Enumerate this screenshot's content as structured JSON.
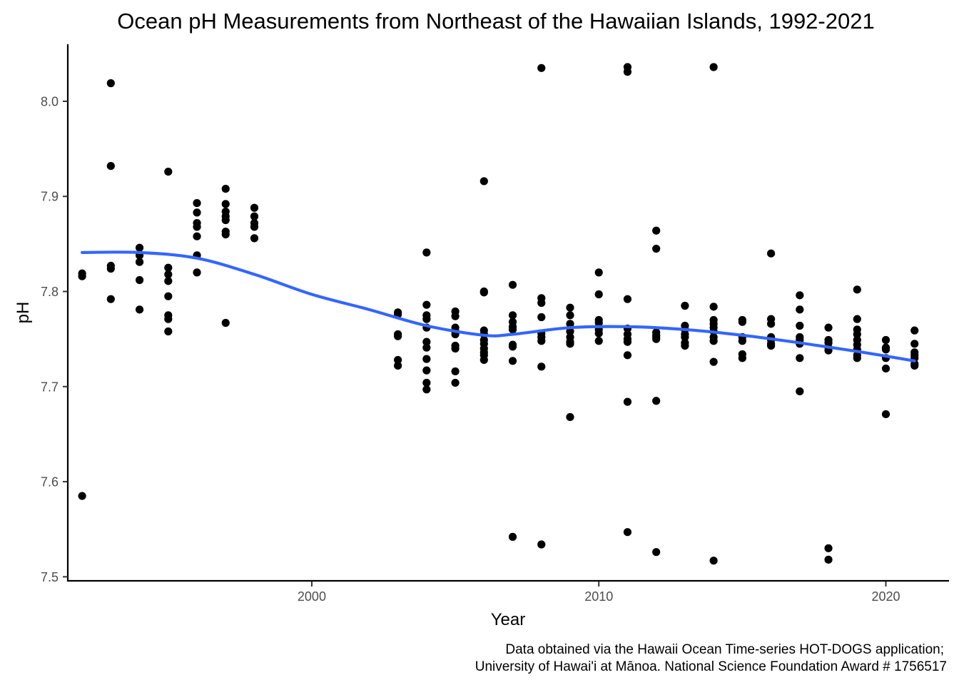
{
  "chart_data": {
    "type": "scatter",
    "title": "Ocean pH Measurements from Northeast of the Hawaiian Islands, 1992-2021",
    "xlabel": "Year",
    "ylabel": "pH",
    "xlim": [
      1991.5,
      2022.2
    ],
    "ylim": [
      7.495,
      8.06
    ],
    "x_ticks": [
      2000,
      2010,
      2020
    ],
    "y_ticks": [
      7.5,
      7.6,
      7.7,
      7.8,
      7.9,
      8.0
    ],
    "x_tick_labels": [
      "2000",
      "2010",
      "2020"
    ],
    "y_tick_labels": [
      "7.5",
      "7.6",
      "7.7",
      "7.8",
      "7.9",
      "8.0"
    ],
    "grid": false,
    "legend": "none",
    "point_color": "#000000",
    "smooth_color": "#3366FF",
    "caption_lines": [
      "Data obtained via the Hawaii Ocean Time-series HOT-DOGS application;",
      "University of Hawai'i at Mānoa. National Science Foundation Award # 1756517"
    ],
    "points": [
      {
        "year": 1992,
        "pH": [
          7.819,
          7.816,
          7.585
        ]
      },
      {
        "year": 1993,
        "pH": [
          8.019,
          7.932,
          7.827,
          7.824,
          7.792
        ]
      },
      {
        "year": 1994,
        "pH": [
          7.846,
          7.838,
          7.831,
          7.812,
          7.781
        ]
      },
      {
        "year": 1995,
        "pH": [
          7.926,
          7.825,
          7.818,
          7.811,
          7.795,
          7.775,
          7.771,
          7.758
        ]
      },
      {
        "year": 1996,
        "pH": [
          7.893,
          7.883,
          7.872,
          7.868,
          7.858,
          7.838,
          7.82
        ]
      },
      {
        "year": 1997,
        "pH": [
          7.908,
          7.892,
          7.884,
          7.879,
          7.875,
          7.863,
          7.86,
          7.767
        ]
      },
      {
        "year": 1998,
        "pH": [
          7.888,
          7.879,
          7.872,
          7.868,
          7.856
        ]
      },
      {
        "year": 2003,
        "pH": [
          7.778,
          7.776,
          7.755,
          7.753,
          7.728,
          7.722
        ]
      },
      {
        "year": 2004,
        "pH": [
          7.841,
          7.786,
          7.775,
          7.771,
          7.762,
          7.747,
          7.741,
          7.729,
          7.717,
          7.704,
          7.697
        ]
      },
      {
        "year": 2005,
        "pH": [
          7.779,
          7.774,
          7.762,
          7.758,
          7.755,
          7.743,
          7.74,
          7.716,
          7.704
        ]
      },
      {
        "year": 2006,
        "pH": [
          7.916,
          7.8,
          7.799,
          7.759,
          7.755,
          7.749,
          7.745,
          7.74,
          7.736,
          7.733,
          7.728
        ]
      },
      {
        "year": 2007,
        "pH": [
          7.807,
          7.775,
          7.768,
          7.763,
          7.76,
          7.744,
          7.742,
          7.727,
          7.542
        ]
      },
      {
        "year": 2008,
        "pH": [
          8.035,
          7.793,
          7.788,
          7.773,
          7.756,
          7.752,
          7.748,
          7.721,
          7.534
        ]
      },
      {
        "year": 2009,
        "pH": [
          7.783,
          7.775,
          7.766,
          7.758,
          7.752,
          7.747,
          7.745,
          7.668
        ]
      },
      {
        "year": 2010,
        "pH": [
          7.82,
          7.797,
          7.77,
          7.767,
          7.76,
          7.756,
          7.748
        ]
      },
      {
        "year": 2011,
        "pH": [
          8.036,
          8.031,
          7.792,
          7.761,
          7.755,
          7.75,
          7.747,
          7.733,
          7.684,
          7.547
        ]
      },
      {
        "year": 2012,
        "pH": [
          7.864,
          7.845,
          7.757,
          7.754,
          7.752,
          7.75,
          7.685,
          7.526
        ]
      },
      {
        "year": 2013,
        "pH": [
          7.785,
          7.764,
          7.76,
          7.755,
          7.752,
          7.746,
          7.743
        ]
      },
      {
        "year": 2014,
        "pH": [
          8.036,
          7.784,
          7.77,
          7.766,
          7.762,
          7.758,
          7.752,
          7.748,
          7.726,
          7.517
        ]
      },
      {
        "year": 2015,
        "pH": [
          7.77,
          7.768,
          7.752,
          7.748,
          7.734,
          7.73
        ]
      },
      {
        "year": 2016,
        "pH": [
          7.84,
          7.771,
          7.766,
          7.752,
          7.749,
          7.745,
          7.743
        ]
      },
      {
        "year": 2017,
        "pH": [
          7.796,
          7.781,
          7.764,
          7.752,
          7.749,
          7.745,
          7.73,
          7.695
        ]
      },
      {
        "year": 2018,
        "pH": [
          7.762,
          7.749,
          7.746,
          7.741,
          7.738,
          7.53,
          7.518
        ]
      },
      {
        "year": 2019,
        "pH": [
          7.802,
          7.771,
          7.76,
          7.755,
          7.749,
          7.744,
          7.739,
          7.733,
          7.73
        ]
      },
      {
        "year": 2020,
        "pH": [
          7.749,
          7.741,
          7.739,
          7.73,
          7.719,
          7.671
        ]
      },
      {
        "year": 2021,
        "pH": [
          7.759,
          7.745,
          7.736,
          7.733,
          7.73,
          7.724,
          7.722
        ]
      }
    ],
    "smooth_line": [
      {
        "year": 1992,
        "pH": 7.841
      },
      {
        "year": 1994,
        "pH": 7.841
      },
      {
        "year": 1996,
        "pH": 7.835
      },
      {
        "year": 1998,
        "pH": 7.818
      },
      {
        "year": 2000,
        "pH": 7.797
      },
      {
        "year": 2002,
        "pH": 7.781
      },
      {
        "year": 2004,
        "pH": 7.764
      },
      {
        "year": 2006,
        "pH": 7.754
      },
      {
        "year": 2007,
        "pH": 7.755
      },
      {
        "year": 2009,
        "pH": 7.762
      },
      {
        "year": 2011,
        "pH": 7.763
      },
      {
        "year": 2013,
        "pH": 7.76
      },
      {
        "year": 2015,
        "pH": 7.754
      },
      {
        "year": 2017,
        "pH": 7.746
      },
      {
        "year": 2019,
        "pH": 7.737
      },
      {
        "year": 2021,
        "pH": 7.727
      }
    ]
  }
}
